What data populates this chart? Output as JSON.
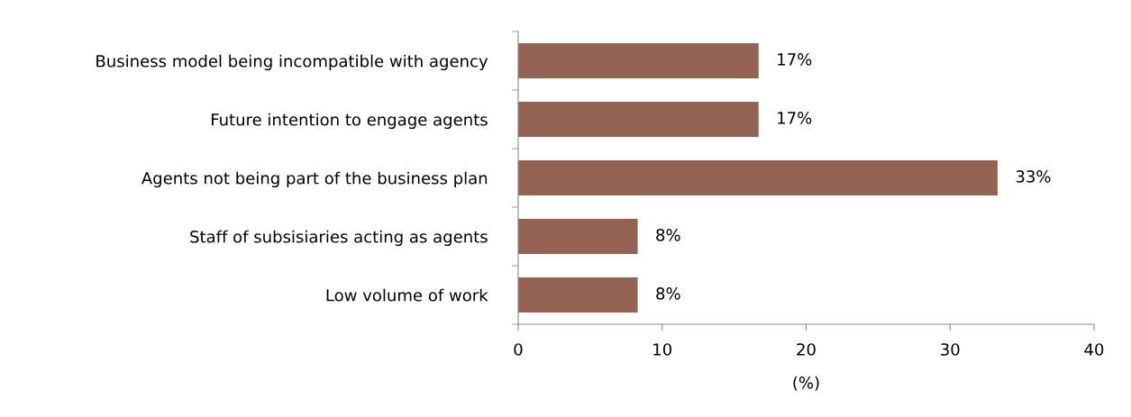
{
  "chart_data": {
    "type": "bar",
    "orientation": "horizontal",
    "xlabel": "(%)",
    "categories": [
      "Business model being incompatible with agency",
      "Future intention to engage agents",
      "Agents not being part of the business plan",
      "Staff of subsisiaries acting as agents",
      "Low volume of work"
    ],
    "values": [
      16.7,
      16.7,
      33.3,
      8.3,
      8.3
    ],
    "value_labels": [
      "17%",
      "17%",
      "33%",
      "8%",
      "8%"
    ],
    "color": "#956352",
    "xlim": [
      0,
      40
    ],
    "xticks": [
      0,
      10,
      20,
      30,
      40
    ],
    "grid": false
  }
}
